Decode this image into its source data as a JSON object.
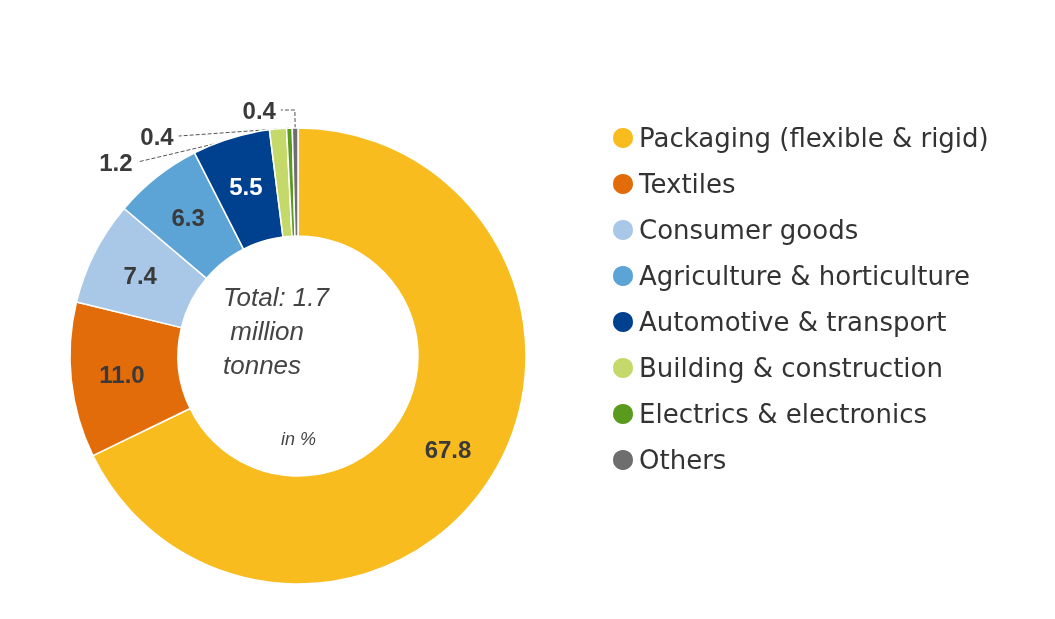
{
  "chart_data": {
    "type": "donut",
    "categories": [
      "Packaging (flexible & rigid)",
      "Textiles",
      "Consumer goods",
      "Agriculture & horticulture",
      "Automotive & transport",
      "Building & construction",
      "Electrics & electronics",
      "Others"
    ],
    "values": [
      67.8,
      11.0,
      7.4,
      6.3,
      5.5,
      1.2,
      0.4,
      0.4
    ],
    "value_labels": [
      "67.8",
      "11.0",
      "7.4",
      "6.3",
      "5.5",
      "1.2",
      "0.4",
      "0.4"
    ],
    "colors": [
      "#f9bc1e",
      "#e36c0a",
      "#a9c8e7",
      "#5ca3d6",
      "#00418f",
      "#c5d96a",
      "#5a9a1c",
      "#6e6e6e"
    ],
    "annotations": [
      "Total: 1.7 million tonnes",
      "in %"
    ],
    "legend": "right"
  }
}
